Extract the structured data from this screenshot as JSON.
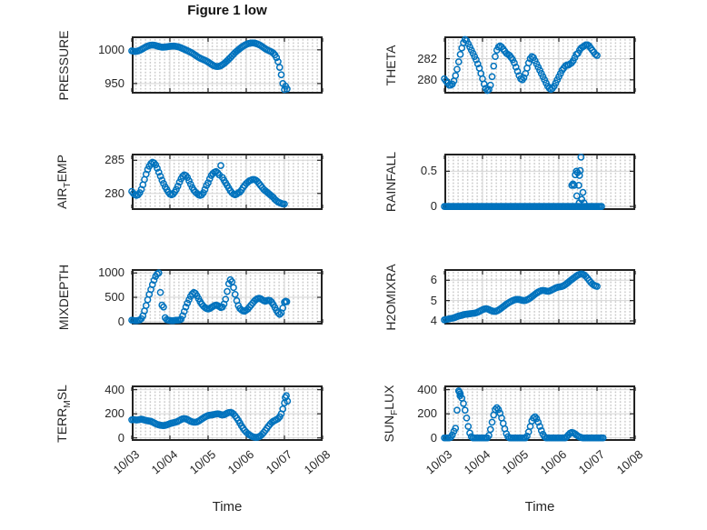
{
  "figure": {
    "title": "Figure 1 low",
    "xlabel": "Time"
  },
  "style": {
    "marker_color": "#0072BD",
    "axis_color": "#222222",
    "grid_color": "#d6d6d6",
    "minor_grid_color": "#c9c9c9",
    "text_color": "#262626",
    "title_color": "#111111"
  },
  "x_axis": {
    "label": "Time",
    "lim_days": [
      0,
      5
    ],
    "tick_labels": [
      "10/03",
      "10/04",
      "10/05",
      "10/06",
      "10/07",
      "10/08"
    ]
  },
  "chart_data": [
    {
      "id": "pressure",
      "type": "scatter",
      "side": "left",
      "row": 0,
      "title": "Figure 1 low",
      "ylabel": {
        "pre": "PRESSURE",
        "sub": "",
        "post": ""
      },
      "ylim": [
        935,
        1020
      ],
      "yticks": [
        950,
        1000
      ],
      "x_start_day": 0,
      "x_step_days": 0.0416667,
      "y": [
        998.5,
        998.0,
        997.6,
        997.8,
        998.4,
        999.3,
        1000.4,
        1001.8,
        1003.2,
        1004.5,
        1005.6,
        1006.4,
        1006.9,
        1007.1,
        1006.9,
        1006.4,
        1005.7,
        1005.0,
        1004.4,
        1004.0,
        1003.9,
        1004.1,
        1004.5,
        1004.9,
        1005.2,
        1005.4,
        1005.5,
        1005.4,
        1005.1,
        1004.6,
        1003.9,
        1003.0,
        1002.0,
        1000.9,
        999.8,
        998.7,
        997.6,
        996.4,
        995.1,
        993.6,
        992.0,
        990.4,
        988.9,
        987.6,
        986.5,
        985.5,
        984.5,
        983.3,
        981.9,
        980.3,
        978.7,
        977.2,
        976.1,
        975.4,
        975.2,
        975.6,
        976.5,
        977.9,
        979.6,
        981.6,
        983.8,
        986.1,
        988.5,
        991.0,
        993.5,
        996.0,
        998.0,
        1000.0,
        1002.0,
        1003.8,
        1005.4,
        1006.8,
        1008.0,
        1009.0,
        1009.7,
        1010.1,
        1010.2,
        1010.0,
        1009.5,
        1008.7,
        1007.7,
        1006.4,
        1004.9,
        1003.2,
        1001.6,
        1000.2,
        999.0,
        998.0,
        996.8,
        995.0,
        992.5,
        988.5,
        982.5,
        974.0,
        963.0,
        950.0,
        941.0
      ],
      "extra_points": [
        [
          4.03,
          946
        ],
        [
          4.07,
          942
        ]
      ]
    },
    {
      "id": "air-temp",
      "type": "scatter",
      "side": "left",
      "row": 1,
      "ylabel": {
        "pre": "AIR",
        "sub": "T",
        "post": "EMP"
      },
      "ylim": [
        277.5,
        286
      ],
      "yticks": [
        280,
        285
      ],
      "x_start_day": 0,
      "x_step_days": 0.0416667,
      "y": [
        280.3,
        280.0,
        279.8,
        279.7,
        279.8,
        280.1,
        280.6,
        281.3,
        282.1,
        282.9,
        283.6,
        284.1,
        284.5,
        284.7,
        284.6,
        284.3,
        283.8,
        283.2,
        282.6,
        282.0,
        281.5,
        281.0,
        280.6,
        280.2,
        279.9,
        279.8,
        279.9,
        280.2,
        280.6,
        281.1,
        281.7,
        282.2,
        282.6,
        282.8,
        282.7,
        282.4,
        281.9,
        281.4,
        280.9,
        280.5,
        280.2,
        280.0,
        279.8,
        279.7,
        279.8,
        280.1,
        280.6,
        281.2,
        281.6,
        282.2,
        282.7,
        283.0,
        283.2,
        283.3,
        283.1,
        282.8,
        284.2,
        282.4,
        282.0,
        281.6,
        281.2,
        280.8,
        280.4,
        280.1,
        279.9,
        279.8,
        279.9,
        280.1,
        280.2,
        280.5,
        280.9,
        281.2,
        281.5,
        281.7,
        281.9,
        282.0,
        282.1,
        282.1,
        282.0,
        281.8,
        281.5,
        281.2,
        280.9,
        280.6,
        280.4,
        280.2,
        280.0,
        279.8,
        279.6,
        279.4,
        279.1,
        278.9,
        278.7,
        278.6,
        278.5,
        278.4,
        278.4
      ],
      "extra_points": []
    },
    {
      "id": "mixdepth",
      "type": "scatter",
      "side": "left",
      "row": 2,
      "ylabel": {
        "pre": "MIXDEPTH",
        "sub": "",
        "post": ""
      },
      "ylim": [
        -60,
        1080
      ],
      "yticks": [
        0,
        500,
        1000
      ],
      "x_start_day": 0,
      "x_step_days": 0.0416667,
      "y": [
        30,
        25,
        20,
        20,
        25,
        35,
        60,
        120,
        220,
        330,
        450,
        560,
        660,
        760,
        850,
        930,
        980,
        1000,
        600,
        340,
        300,
        80,
        40,
        30,
        25,
        20,
        20,
        25,
        30,
        30,
        35,
        50,
        120,
        210,
        300,
        380,
        450,
        520,
        570,
        600,
        580,
        530,
        470,
        410,
        360,
        320,
        290,
        270,
        260,
        270,
        290,
        310,
        330,
        340,
        330,
        310,
        290,
        300,
        360,
        460,
        620,
        780,
        860,
        820,
        700,
        560,
        430,
        330,
        270,
        240,
        220,
        215,
        235,
        260,
        300,
        340,
        380,
        420,
        450,
        470,
        480,
        470,
        450,
        430,
        420,
        430,
        440,
        430,
        400,
        350,
        290,
        230,
        180,
        150,
        180,
        280,
        400
      ],
      "extra_points": [
        [
          4.03,
          420
        ],
        [
          4.06,
          410
        ]
      ]
    },
    {
      "id": "terr-msl",
      "type": "scatter",
      "side": "left",
      "row": 3,
      "ylabel": {
        "pre": "TERR",
        "sub": "M",
        "post": "SL"
      },
      "ylim": [
        -25,
        435
      ],
      "yticks": [
        0,
        200,
        400
      ],
      "x_start_day": 0,
      "x_step_days": 0.0416667,
      "y": [
        150,
        152,
        150,
        148,
        150,
        152,
        155,
        152,
        148,
        145,
        142,
        140,
        138,
        132,
        125,
        118,
        112,
        108,
        105,
        103,
        102,
        104,
        108,
        113,
        118,
        122,
        125,
        128,
        132,
        138,
        145,
        152,
        158,
        160,
        158,
        152,
        145,
        138,
        133,
        130,
        130,
        133,
        139,
        147,
        156,
        165,
        173,
        180,
        185,
        188,
        190,
        192,
        195,
        198,
        200,
        198,
        193,
        190,
        192,
        198,
        205,
        210,
        212,
        208,
        198,
        183,
        165,
        145,
        123,
        100,
        80,
        62,
        47,
        35,
        25,
        17,
        10,
        6,
        4,
        5,
        10,
        18,
        30,
        45,
        62,
        80,
        98,
        114,
        128,
        138,
        145,
        152,
        160,
        175,
        200,
        240,
        290
      ],
      "extra_points": [
        [
          4.02,
          335
        ],
        [
          4.05,
          350
        ],
        [
          4.08,
          305
        ]
      ]
    },
    {
      "id": "theta",
      "type": "scatter",
      "side": "right",
      "row": 0,
      "ylabel": {
        "pre": "THETA",
        "sub": "",
        "post": ""
      },
      "ylim": [
        278.7,
        284.1
      ],
      "yticks": [
        280,
        282
      ],
      "x_start_day": 0,
      "x_step_days": 0.0416667,
      "y": [
        280.1,
        279.9,
        279.7,
        279.5,
        279.5,
        279.6,
        279.9,
        280.4,
        281.0,
        281.7,
        282.4,
        283.0,
        283.5,
        283.8,
        283.7,
        283.4,
        283.1,
        282.8,
        282.5,
        282.2,
        281.9,
        281.5,
        281.1,
        280.6,
        280.1,
        279.6,
        279.2,
        279.0,
        279.1,
        279.5,
        280.3,
        281.3,
        282.2,
        282.8,
        283.1,
        283.2,
        283.1,
        282.9,
        282.7,
        282.5,
        282.4,
        282.3,
        282.1,
        281.9,
        281.6,
        281.2,
        280.8,
        280.4,
        280.1,
        280.0,
        280.2,
        280.6,
        281.1,
        281.6,
        282.0,
        282.2,
        282.1,
        281.8,
        281.5,
        281.2,
        280.9,
        280.6,
        280.3,
        280.0,
        279.7,
        279.4,
        279.2,
        279.1,
        279.2,
        279.4,
        279.7,
        280.0,
        280.3,
        280.6,
        280.9,
        281.1,
        281.3,
        281.4,
        281.4,
        281.5,
        281.6,
        281.8,
        282.1,
        282.4,
        282.5,
        282.8,
        283.0,
        283.1,
        283.2,
        283.3,
        283.3,
        283.2,
        283.0,
        282.8,
        282.6,
        282.4,
        282.3
      ],
      "extra_points": []
    },
    {
      "id": "rainfall",
      "type": "scatter",
      "side": "right",
      "row": 1,
      "ylabel": {
        "pre": "RAINFALL",
        "sub": "",
        "post": ""
      },
      "ylim": [
        -0.05,
        0.75
      ],
      "yticks": [
        0,
        0.5
      ],
      "x_start_day": 0,
      "x_step_days": 0.0416667,
      "y": [
        0,
        0,
        0,
        0,
        0,
        0,
        0,
        0,
        0,
        0,
        0,
        0,
        0,
        0,
        0,
        0,
        0,
        0,
        0,
        0,
        0,
        0,
        0,
        0,
        0,
        0,
        0,
        0,
        0,
        0,
        0,
        0,
        0,
        0,
        0,
        0,
        0,
        0,
        0,
        0,
        0,
        0,
        0,
        0,
        0,
        0,
        0,
        0,
        0,
        0,
        0,
        0,
        0,
        0,
        0,
        0,
        0,
        0,
        0,
        0,
        0,
        0,
        0,
        0,
        0,
        0,
        0,
        0,
        0,
        0,
        0,
        0,
        0,
        0,
        0,
        0,
        0,
        0,
        0,
        0,
        0,
        0,
        0,
        0,
        0,
        0,
        0,
        0,
        0,
        0,
        0,
        0,
        0,
        0,
        0,
        0,
        0
      ],
      "extra_points": [
        [
          3.34,
          0.3
        ],
        [
          3.37,
          0.32
        ],
        [
          3.4,
          0.3
        ],
        [
          3.43,
          0.45
        ],
        [
          3.46,
          0.5
        ],
        [
          3.49,
          0.48
        ],
        [
          3.52,
          0.3
        ],
        [
          3.54,
          0.44
        ],
        [
          3.56,
          0.51
        ],
        [
          3.58,
          0.7
        ],
        [
          3.47,
          0.15
        ],
        [
          3.53,
          0.05
        ],
        [
          3.6,
          0.1
        ],
        [
          3.63,
          0.2
        ],
        [
          3.66,
          0.05
        ],
        [
          4.04,
          0
        ],
        [
          4.08,
          0
        ],
        [
          4.12,
          0
        ]
      ]
    },
    {
      "id": "h2omixra",
      "type": "scatter",
      "side": "right",
      "row": 2,
      "ylabel": {
        "pre": "H2OMIXRA",
        "sub": "",
        "post": ""
      },
      "ylim": [
        3.82,
        6.55
      ],
      "yticks": [
        4,
        5,
        6
      ],
      "x_start_day": 0,
      "x_step_days": 0.0416667,
      "y": [
        4.05,
        4.07,
        4.08,
        4.1,
        4.12,
        4.13,
        4.15,
        4.18,
        4.21,
        4.24,
        4.26,
        4.28,
        4.3,
        4.32,
        4.33,
        4.34,
        4.35,
        4.36,
        4.37,
        4.38,
        4.4,
        4.43,
        4.47,
        4.51,
        4.55,
        4.58,
        4.6,
        4.59,
        4.56,
        4.52,
        4.49,
        4.47,
        4.47,
        4.49,
        4.53,
        4.58,
        4.64,
        4.7,
        4.76,
        4.82,
        4.87,
        4.92,
        4.96,
        5.0,
        5.03,
        5.05,
        5.06,
        5.05,
        5.03,
        5.01,
        5.0,
        5.01,
        5.04,
        5.08,
        5.13,
        5.19,
        5.25,
        5.31,
        5.37,
        5.42,
        5.46,
        5.49,
        5.5,
        5.49,
        5.47,
        5.46,
        5.47,
        5.5,
        5.54,
        5.58,
        5.62,
        5.65,
        5.67,
        5.68,
        5.7,
        5.73,
        5.78,
        5.84,
        5.9,
        5.97,
        6.03,
        6.09,
        6.15,
        6.21,
        6.26,
        6.29,
        6.31,
        6.3,
        6.26,
        6.19,
        6.1,
        6.0,
        5.9,
        5.82,
        5.76,
        5.72,
        5.7
      ],
      "extra_points": []
    },
    {
      "id": "sun-flux",
      "type": "scatter",
      "side": "right",
      "row": 3,
      "ylabel": {
        "pre": "SUN",
        "sub": "F",
        "post": "LUX"
      },
      "ylim": [
        -25,
        435
      ],
      "yticks": [
        0,
        200,
        400
      ],
      "x_start_day": 0,
      "x_step_days": 0.0416667,
      "y": [
        0,
        0,
        0,
        0,
        5,
        25,
        55,
        80,
        230,
        390,
        365,
        330,
        285,
        230,
        165,
        95,
        40,
        10,
        0,
        0,
        0,
        0,
        0,
        0,
        0,
        0,
        0,
        0,
        20,
        70,
        130,
        190,
        235,
        250,
        235,
        205,
        165,
        120,
        75,
        35,
        10,
        0,
        0,
        0,
        0,
        0,
        0,
        0,
        0,
        0,
        0,
        0,
        15,
        50,
        95,
        140,
        165,
        175,
        160,
        130,
        95,
        60,
        30,
        10,
        0,
        0,
        0,
        0,
        0,
        0,
        0,
        0,
        0,
        0,
        0,
        0,
        0,
        10,
        25,
        38,
        45,
        42,
        35,
        25,
        15,
        8,
        3,
        0,
        0,
        0,
        0,
        0,
        0,
        0,
        0,
        0,
        0
      ],
      "extra_points": [
        [
          0.395,
          380
        ],
        [
          0.41,
          350
        ],
        [
          4.04,
          0
        ],
        [
          4.08,
          0
        ],
        [
          4.12,
          0
        ],
        [
          4.16,
          0
        ]
      ]
    }
  ]
}
